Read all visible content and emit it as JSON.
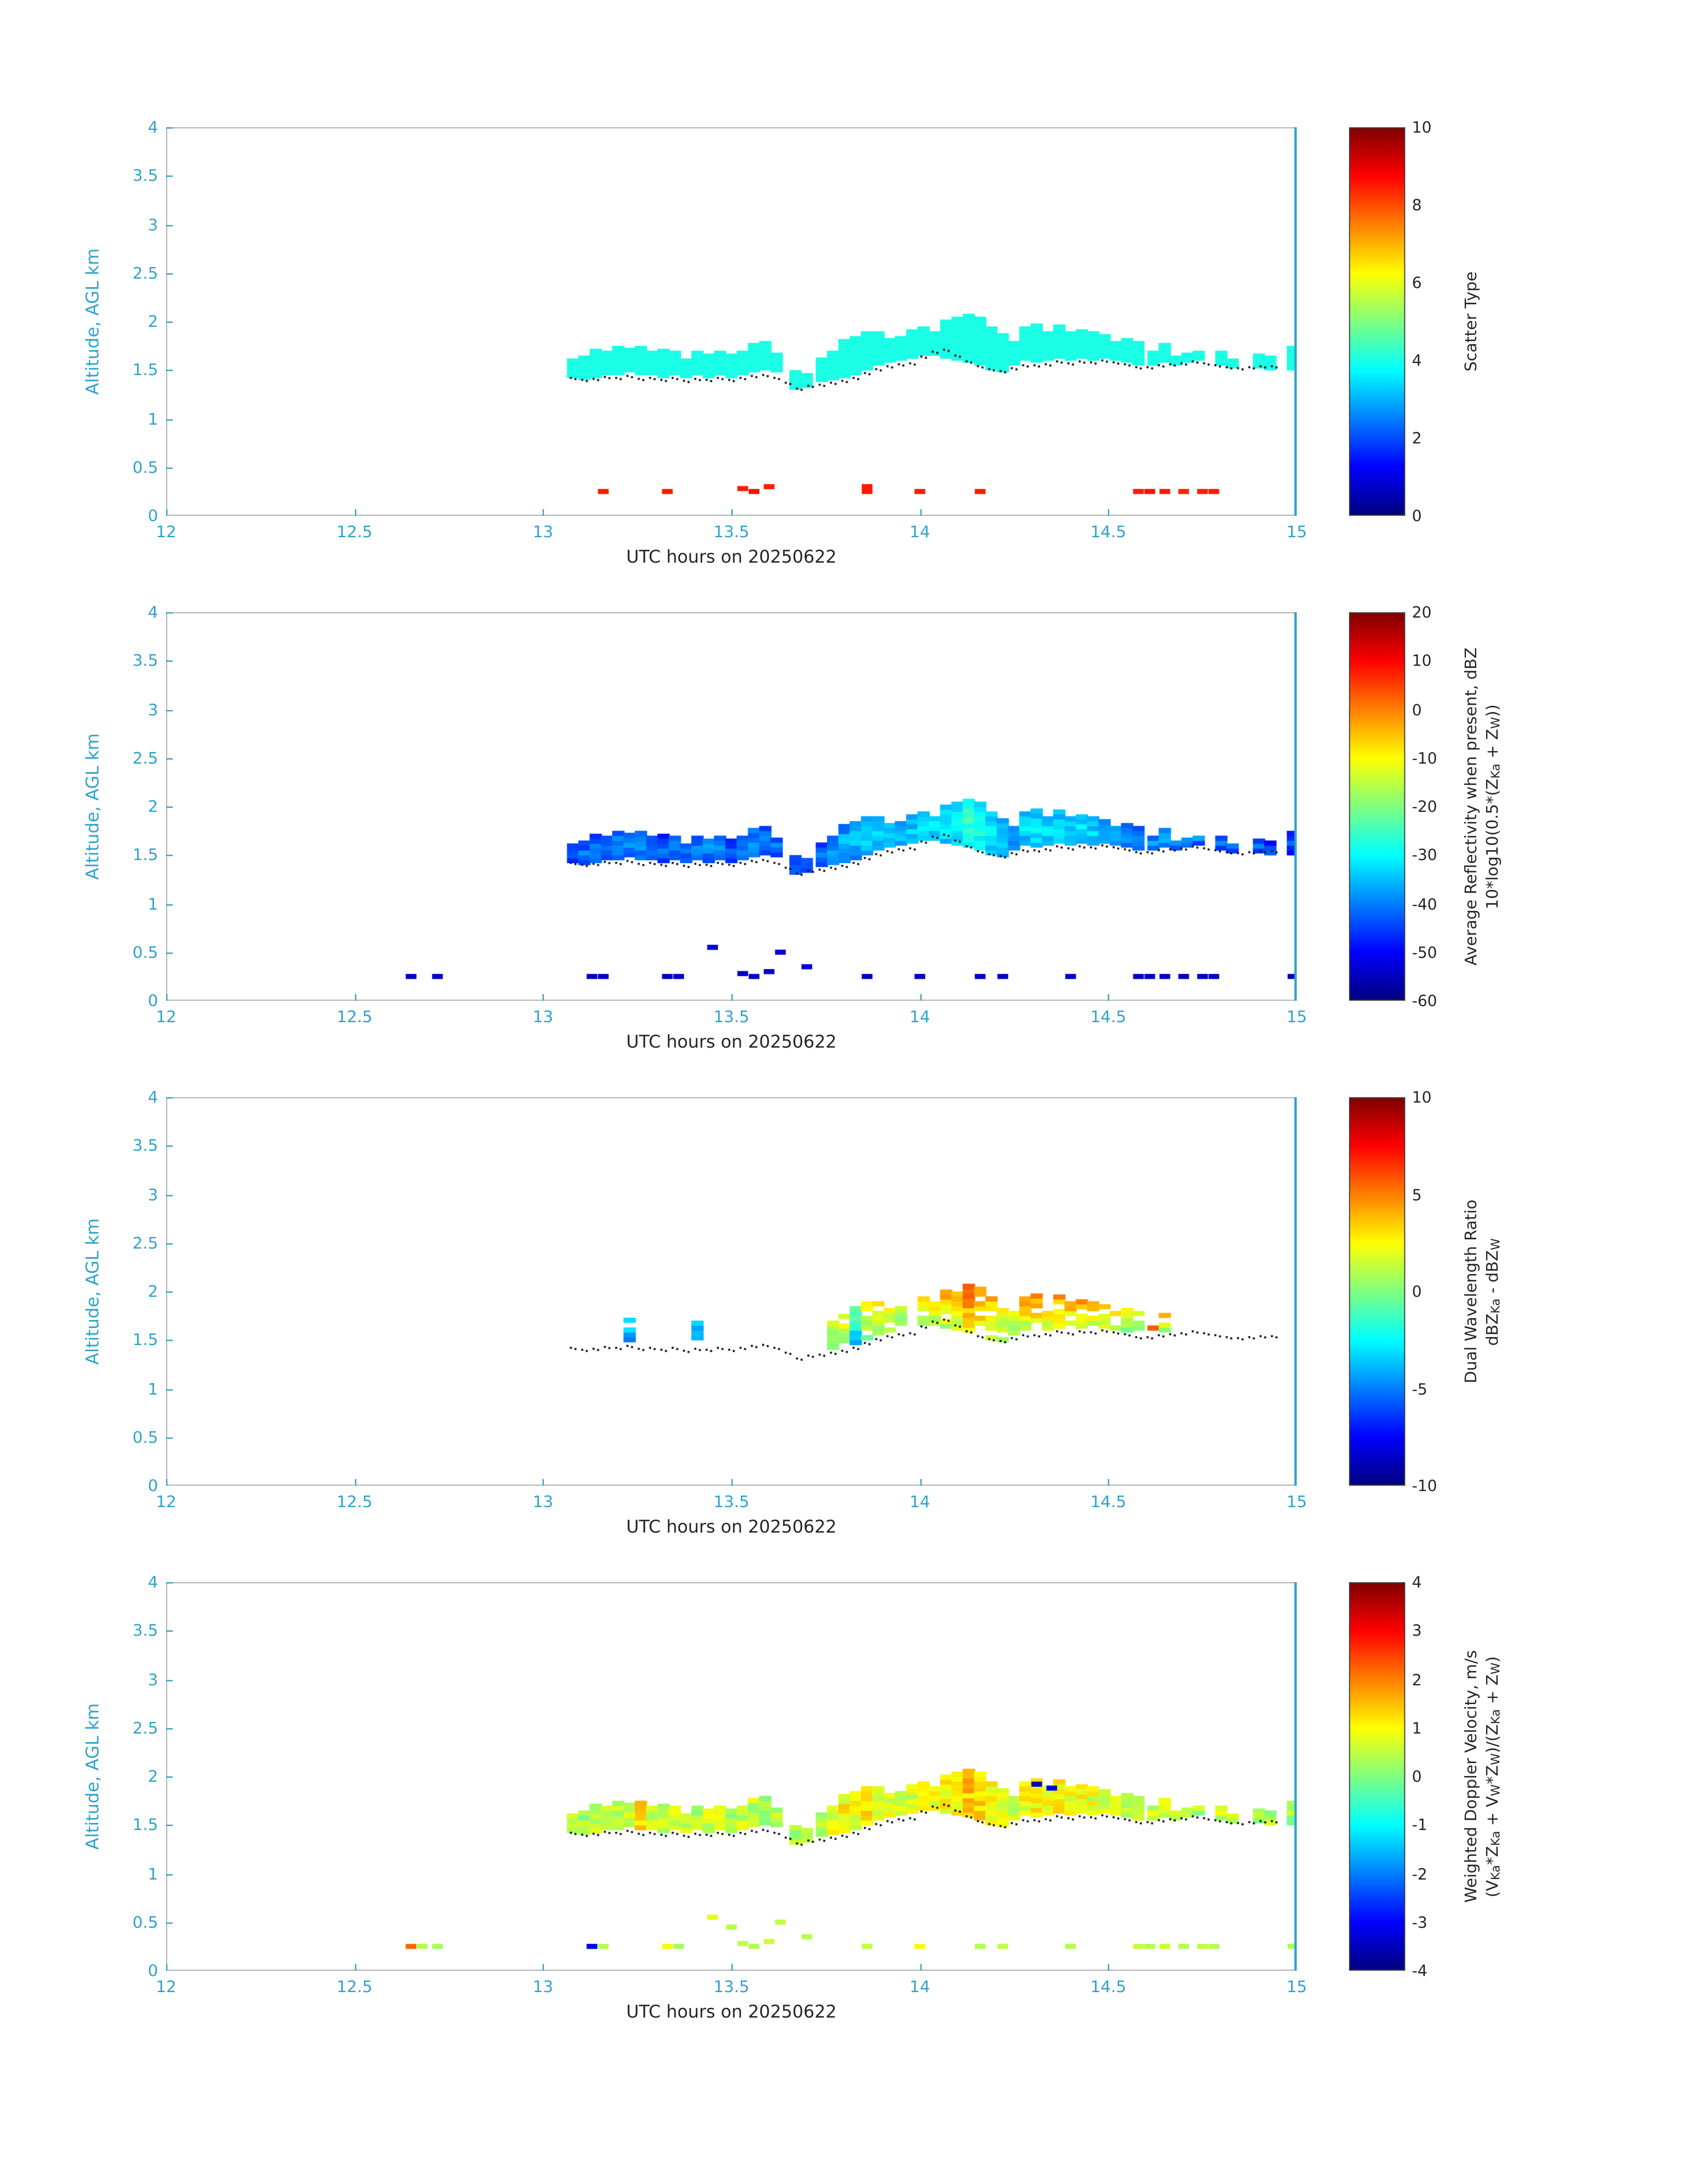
{
  "figure": {
    "xlabel": "UTC hours on 20250622",
    "ylabel": "Altitude, AGL km",
    "xlim": [
      12,
      15
    ],
    "ylim": [
      0,
      4
    ],
    "xticks": [
      12,
      12.5,
      13,
      13.5,
      14,
      14.5,
      15
    ],
    "xtick_labels": [
      "12",
      "12.5",
      "13",
      "13.5",
      "14",
      "14.5",
      "15"
    ],
    "yticks": [
      0,
      0.5,
      1,
      1.5,
      2,
      2.5,
      3,
      3.5,
      4
    ],
    "ytick_labels": [
      "0",
      "0.5",
      "1",
      "1.5",
      "2",
      "2.5",
      "3",
      "3.5",
      "4"
    ],
    "axis_tick_color": "#2FA3CC",
    "label_color": "#262626",
    "box_color": "#B0B0B0",
    "background": "#FFFFFF",
    "colormap": "jet"
  },
  "chart_data": {
    "type": "heatmap",
    "x_units": "UTC hours",
    "y_units": "km AGL",
    "panels": [
      {
        "name": "scatter-type",
        "value_index": 0,
        "min": 0,
        "max": 10,
        "spread": 0,
        "shape": "none",
        "colorbar": {
          "ticks": [
            "0",
            "2",
            "4",
            "6",
            "8",
            "10"
          ],
          "label_lines": [
            [
              [
                "t",
                "Scatter Type"
              ]
            ]
          ]
        }
      },
      {
        "name": "average-reflectivity",
        "value_index": 1,
        "min": -60,
        "max": 20,
        "spread": 3,
        "shape": "core",
        "colorbar": {
          "ticks": [
            "-60",
            "-50",
            "-40",
            "-30",
            "-20",
            "-10",
            "0",
            "10",
            "20"
          ],
          "label_lines": [
            [
              [
                "t",
                "Average Reflectivity when present, dBZ"
              ]
            ],
            [
              [
                "t",
                "10*log10(0.5*(Z"
              ],
              [
                "s",
                "Ka"
              ],
              [
                "t",
                " + Z"
              ],
              [
                "s",
                "W"
              ],
              [
                "t",
                "))"
              ]
            ]
          ]
        }
      },
      {
        "name": "dual-wavelength-ratio",
        "value_index": 2,
        "min": -10,
        "max": 10,
        "spread": 1.0,
        "shape": "top",
        "colorbar": {
          "ticks": [
            "-10",
            "-5",
            "0",
            "5",
            "10"
          ],
          "label_lines": [
            [
              [
                "t",
                "Dual Wavelength Ratio"
              ]
            ],
            [
              [
                "t",
                "dBZ"
              ],
              [
                "s",
                "Ka"
              ],
              [
                "t",
                " - dBZ"
              ],
              [
                "s",
                "W"
              ]
            ]
          ]
        }
      },
      {
        "name": "weighted-doppler-velocity",
        "value_index": 3,
        "min": -4,
        "max": 4,
        "spread": 0.45,
        "shape": "none",
        "colorbar": {
          "ticks": [
            "-4",
            "-3",
            "-2",
            "-1",
            "0",
            "1",
            "2",
            "3",
            "4"
          ],
          "label_lines": [
            [
              [
                "t",
                "Weighted Doppler Velocity, m/s"
              ]
            ],
            [
              [
                "t",
                "(V"
              ],
              [
                "s",
                "Ka"
              ],
              [
                "t",
                "*Z"
              ],
              [
                "s",
                "Ka"
              ],
              [
                "t",
                " + V"
              ],
              [
                "s",
                "W"
              ],
              [
                "t",
                "*Z"
              ],
              [
                "s",
                "W"
              ],
              [
                "t",
                ")/(Z"
              ],
              [
                "s",
                "Ka"
              ],
              [
                "t",
                " + Z"
              ],
              [
                "s",
                "W"
              ],
              [
                "t",
                ")"
              ]
            ]
          ]
        }
      }
    ],
    "shared": {
      "columns_format": [
        "x_utc_hr",
        "base_km",
        "top_km",
        "scatter_type",
        "reflectivity_dBZ",
        "dwr_dB",
        "velocity_ms"
      ],
      "columns": [
        [
          13.08,
          1.42,
          1.62,
          4,
          -46,
          null,
          0.4
        ],
        [
          13.11,
          1.4,
          1.65,
          4,
          -44,
          null,
          0.3
        ],
        [
          13.14,
          1.42,
          1.68,
          4,
          -42,
          null,
          0.5
        ],
        [
          13.17,
          1.45,
          1.7,
          4,
          -43,
          null,
          0.6
        ],
        [
          13.2,
          1.45,
          1.75,
          4,
          -41,
          null,
          0.5
        ],
        [
          13.23,
          1.48,
          1.78,
          4,
          -40,
          -3,
          0.8
        ],
        [
          13.26,
          1.45,
          1.72,
          4,
          -42,
          null,
          1.2
        ],
        [
          13.29,
          1.45,
          1.7,
          4,
          -44,
          null,
          0.5
        ],
        [
          13.32,
          1.42,
          1.68,
          4,
          -45,
          null,
          0.4
        ],
        [
          13.35,
          1.45,
          1.7,
          4,
          -43,
          null,
          0.6
        ],
        [
          13.38,
          1.42,
          1.65,
          4,
          -44,
          null,
          0.5
        ],
        [
          13.41,
          1.45,
          1.7,
          4,
          -42,
          -4,
          0.4
        ],
        [
          13.44,
          1.42,
          1.72,
          4,
          -41,
          null,
          0.7
        ],
        [
          13.47,
          1.45,
          1.68,
          4,
          -43,
          null,
          0.5
        ],
        [
          13.5,
          1.42,
          1.65,
          4,
          -45,
          null,
          0.4
        ],
        [
          13.53,
          1.45,
          1.7,
          4,
          -42,
          null,
          0.6
        ],
        [
          13.56,
          1.48,
          1.75,
          4,
          -40,
          null,
          0.5
        ],
        [
          13.59,
          1.5,
          1.78,
          4,
          -41,
          null,
          0.4
        ],
        [
          13.62,
          1.48,
          1.72,
          4,
          -43,
          null,
          0.5
        ],
        [
          13.67,
          1.3,
          1.48,
          4,
          -44,
          null,
          0.3
        ],
        [
          13.7,
          1.32,
          1.5,
          4,
          -45,
          null,
          0.4
        ],
        [
          13.74,
          1.38,
          1.6,
          4,
          -42,
          null,
          0.5
        ],
        [
          13.77,
          1.4,
          1.68,
          4,
          -40,
          0.5,
          0.8
        ],
        [
          13.8,
          1.42,
          1.8,
          4,
          -38,
          1.5,
          1.0
        ],
        [
          13.83,
          1.45,
          1.85,
          4,
          -37,
          -2,
          0.9
        ],
        [
          13.86,
          1.5,
          1.88,
          4,
          -36,
          1.0,
          1.1
        ],
        [
          13.89,
          1.55,
          1.9,
          4,
          -35,
          2.0,
          0.8
        ],
        [
          13.92,
          1.58,
          1.88,
          4,
          -36,
          1.5,
          0.7
        ],
        [
          13.95,
          1.6,
          1.85,
          4,
          -37,
          0.5,
          0.6
        ],
        [
          13.98,
          1.62,
          1.88,
          4,
          -36,
          null,
          0.7
        ],
        [
          14.01,
          1.65,
          1.92,
          4,
          -35,
          1.0,
          0.8
        ],
        [
          14.04,
          1.65,
          1.95,
          4,
          -34,
          2.0,
          0.9
        ],
        [
          14.07,
          1.62,
          1.98,
          4,
          -33,
          2.5,
          1.0
        ],
        [
          14.1,
          1.6,
          2.02,
          4,
          -31,
          3.0,
          1.2
        ],
        [
          14.13,
          1.58,
          2.08,
          4,
          -29,
          4.0,
          1.4
        ],
        [
          14.16,
          1.55,
          2.05,
          4,
          -30,
          3.5,
          1.3
        ],
        [
          14.19,
          1.5,
          1.95,
          4,
          -33,
          2.5,
          1.0
        ],
        [
          14.22,
          1.48,
          1.88,
          4,
          -36,
          1.5,
          0.8
        ],
        [
          14.25,
          1.55,
          1.85,
          4,
          -38,
          2.0,
          0.7
        ],
        [
          14.28,
          1.6,
          1.92,
          4,
          -35,
          2.5,
          0.9
        ],
        [
          14.31,
          1.58,
          1.95,
          4,
          -34,
          3.0,
          1.0
        ],
        [
          14.34,
          1.6,
          1.92,
          4,
          -35,
          2.5,
          0.9
        ],
        [
          14.37,
          1.62,
          1.95,
          4,
          -34,
          3.0,
          1.1
        ],
        [
          14.4,
          1.6,
          1.9,
          4,
          -36,
          2.5,
          0.8
        ],
        [
          14.43,
          1.62,
          1.92,
          4,
          -35,
          3.0,
          0.9
        ],
        [
          14.46,
          1.6,
          1.88,
          4,
          -36,
          2.0,
          0.8
        ],
        [
          14.49,
          1.62,
          1.85,
          4,
          -37,
          2.5,
          0.7
        ],
        [
          14.52,
          1.6,
          1.82,
          4,
          -38,
          2.0,
          0.8
        ],
        [
          14.55,
          1.58,
          1.8,
          4,
          -39,
          1.5,
          0.6
        ],
        [
          14.58,
          1.55,
          1.78,
          4,
          -40,
          1.0,
          0.7
        ],
        [
          14.62,
          1.55,
          1.72,
          4,
          -41,
          5.0,
          0.6
        ],
        [
          14.65,
          1.58,
          1.75,
          4,
          -40,
          1.5,
          0.5
        ],
        [
          14.68,
          1.55,
          1.7,
          4,
          -42,
          null,
          0.6
        ],
        [
          14.71,
          1.58,
          1.72,
          4,
          -41,
          null,
          0.5
        ],
        [
          14.74,
          1.6,
          1.75,
          4,
          -42,
          null,
          0.4
        ],
        [
          14.8,
          1.55,
          1.68,
          4,
          -44,
          null,
          0.5
        ],
        [
          14.83,
          1.52,
          1.65,
          4,
          -45,
          null,
          0.4
        ],
        [
          14.9,
          1.52,
          1.65,
          4,
          -44,
          null,
          0.3
        ],
        [
          14.93,
          1.5,
          1.62,
          4,
          -45,
          null,
          0.4
        ],
        [
          14.99,
          1.5,
          1.72,
          4,
          -46,
          null,
          0.3
        ]
      ],
      "base_dots": [
        [
          13.08,
          1.43
        ],
        [
          13.11,
          1.41
        ],
        [
          13.14,
          1.42
        ],
        [
          13.17,
          1.44
        ],
        [
          13.2,
          1.43
        ],
        [
          13.23,
          1.45
        ],
        [
          13.26,
          1.42
        ],
        [
          13.29,
          1.43
        ],
        [
          13.32,
          1.41
        ],
        [
          13.35,
          1.43
        ],
        [
          13.38,
          1.4
        ],
        [
          13.41,
          1.42
        ],
        [
          13.44,
          1.41
        ],
        [
          13.47,
          1.43
        ],
        [
          13.5,
          1.41
        ],
        [
          13.53,
          1.43
        ],
        [
          13.56,
          1.45
        ],
        [
          13.59,
          1.46
        ],
        [
          13.62,
          1.43
        ],
        [
          13.65,
          1.38
        ],
        [
          13.68,
          1.32
        ],
        [
          13.71,
          1.35
        ],
        [
          13.74,
          1.36
        ],
        [
          13.77,
          1.38
        ],
        [
          13.8,
          1.4
        ],
        [
          13.83,
          1.43
        ],
        [
          13.86,
          1.48
        ],
        [
          13.89,
          1.52
        ],
        [
          13.92,
          1.55
        ],
        [
          13.95,
          1.57
        ],
        [
          13.98,
          1.58
        ],
        [
          14.01,
          1.65
        ],
        [
          14.04,
          1.7
        ],
        [
          14.07,
          1.72
        ],
        [
          14.1,
          1.66
        ],
        [
          14.13,
          1.6
        ],
        [
          14.16,
          1.55
        ],
        [
          14.19,
          1.52
        ],
        [
          14.22,
          1.5
        ],
        [
          14.25,
          1.53
        ],
        [
          14.28,
          1.56
        ],
        [
          14.31,
          1.56
        ],
        [
          14.34,
          1.57
        ],
        [
          14.37,
          1.6
        ],
        [
          14.4,
          1.58
        ],
        [
          14.43,
          1.6
        ],
        [
          14.46,
          1.59
        ],
        [
          14.49,
          1.61
        ],
        [
          14.52,
          1.59
        ],
        [
          14.55,
          1.57
        ],
        [
          14.58,
          1.54
        ],
        [
          14.61,
          1.54
        ],
        [
          14.64,
          1.56
        ],
        [
          14.67,
          1.57
        ],
        [
          14.7,
          1.58
        ],
        [
          14.73,
          1.6
        ],
        [
          14.76,
          1.58
        ],
        [
          14.79,
          1.56
        ],
        [
          14.82,
          1.54
        ],
        [
          14.85,
          1.53
        ],
        [
          14.88,
          1.54
        ],
        [
          14.91,
          1.55
        ],
        [
          14.94,
          1.55
        ]
      ],
      "surface_marks_format": [
        "x_utc_hr",
        "y_km",
        "scatter_type",
        "reflectivity_dBZ",
        "dwr_dB",
        "velocity_ms"
      ],
      "surface_marks": [
        [
          12.65,
          0.25,
          null,
          -55,
          null,
          2.2
        ],
        [
          12.68,
          0.25,
          null,
          null,
          null,
          0.4
        ],
        [
          12.72,
          0.25,
          null,
          -55,
          null,
          0.3
        ],
        [
          13.13,
          0.25,
          null,
          -55,
          null,
          -3.2
        ],
        [
          13.16,
          0.25,
          8.5,
          -54,
          null,
          0.4
        ],
        [
          13.33,
          0.25,
          8.5,
          -55,
          null,
          0.9
        ],
        [
          13.36,
          0.25,
          null,
          -54,
          null,
          0.3
        ],
        [
          13.45,
          0.55,
          null,
          -52,
          null,
          0.8
        ],
        [
          13.5,
          0.45,
          null,
          null,
          null,
          0.4
        ],
        [
          13.53,
          0.28,
          8.5,
          -55,
          null,
          0.5
        ],
        [
          13.56,
          0.25,
          8.6,
          -54,
          null,
          0.4
        ],
        [
          13.6,
          0.3,
          8.5,
          -55,
          null,
          0.6
        ],
        [
          13.63,
          0.5,
          null,
          -53,
          null,
          0.5
        ],
        [
          13.7,
          0.35,
          null,
          -53,
          null,
          0.4
        ],
        [
          13.86,
          0.25,
          8.5,
          -55,
          null,
          0.5
        ],
        [
          13.86,
          0.3,
          8.5,
          null,
          null,
          null
        ],
        [
          14.0,
          0.25,
          8.5,
          -55,
          null,
          0.9
        ],
        [
          14.16,
          0.25,
          8.5,
          -55,
          null,
          0.4
        ],
        [
          14.22,
          0.25,
          null,
          -55,
          null,
          0.5
        ],
        [
          14.31,
          1.92,
          null,
          null,
          null,
          -3.5
        ],
        [
          14.35,
          1.88,
          null,
          null,
          null,
          -3.2
        ],
        [
          14.4,
          0.25,
          null,
          -54,
          null,
          0.4
        ],
        [
          14.58,
          0.25,
          8.5,
          -55,
          null,
          0.5
        ],
        [
          14.61,
          0.25,
          8.6,
          -55,
          null,
          0.4
        ],
        [
          14.65,
          0.25,
          8.5,
          -54,
          null,
          0.6
        ],
        [
          14.7,
          0.25,
          8.4,
          -55,
          null,
          0.4
        ],
        [
          14.75,
          0.25,
          8.5,
          -55,
          null,
          0.5
        ],
        [
          14.78,
          0.25,
          8.5,
          -54,
          null,
          0.4
        ],
        [
          14.99,
          0.25,
          null,
          -55,
          null,
          0.3
        ]
      ]
    }
  }
}
